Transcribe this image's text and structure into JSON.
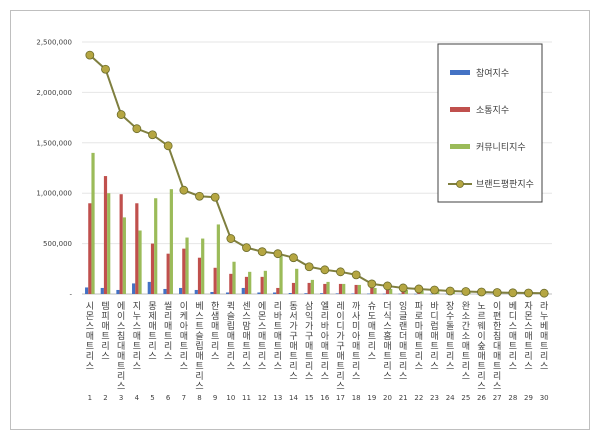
{
  "chart_data": {
    "type": "bar",
    "title": "",
    "xlabel": "",
    "ylabel": "",
    "ylim": [
      0,
      2500000
    ],
    "yticks": [
      "-",
      "500,000",
      "1,000,000",
      "1,500,000",
      "2,000,000",
      "2,500,000"
    ],
    "grid": true,
    "legend_position": "right",
    "categories": [
      "시몬스매트리스",
      "템피매트리스",
      "에이스침대매트리스",
      "지누스매트리스",
      "몽제매트리스",
      "씰리매트리스",
      "이케아매트리스",
      "베스트슬립매트리스",
      "한샘매트리스",
      "퀵슬립매트리스",
      "센스맘매트리스",
      "에몬스매트리스",
      "리바트매트리스",
      "동서가구매트리스",
      "삼익가구매트리스",
      "엘리바아매트리스",
      "레이디가구매트리스",
      "까사미아매트리스",
      "슈도매트리스",
      "더식스홈매트리스",
      "잉글랜더매트리스",
      "파로마매트리스",
      "바디럽매트리스",
      "장수돌매트리스",
      "완소간소매트리스",
      "노르웨이숲매트리스",
      "이편한침대매트리스",
      "베디스매트리스",
      "자몬스매트리스",
      "라누베매트리스"
    ],
    "index_labels": [
      "1",
      "2",
      "3",
      "4",
      "5",
      "6",
      "7",
      "8",
      "9",
      "10",
      "11",
      "12",
      "13",
      "14",
      "15",
      "16",
      "17",
      "18",
      "19",
      "20",
      "21",
      "22",
      "23",
      "24",
      "25",
      "26",
      "27",
      "28",
      "29",
      "30"
    ],
    "series": [
      {
        "name": "참여지수",
        "type": "bar",
        "color": "#4472c4",
        "values": [
          65000,
          60000,
          40000,
          105000,
          120000,
          50000,
          60000,
          40000,
          20000,
          15000,
          60000,
          15000,
          15000,
          10000,
          8000,
          8000,
          6000,
          5000,
          4000,
          3000,
          3000,
          2000,
          2000,
          1500,
          1500,
          1000,
          1000,
          800,
          600,
          500
        ]
      },
      {
        "name": "소통지수",
        "type": "bar",
        "color": "#c0504d",
        "values": [
          900000,
          1170000,
          990000,
          900000,
          500000,
          400000,
          450000,
          360000,
          260000,
          200000,
          170000,
          170000,
          60000,
          110000,
          110000,
          100000,
          100000,
          90000,
          60000,
          40000,
          30000,
          25000,
          20000,
          15000,
          12000,
          10000,
          8000,
          6000,
          5000,
          4000
        ]
      },
      {
        "name": "커뮤니티지수",
        "type": "bar",
        "color": "#9bbb59",
        "values": [
          1400000,
          1000000,
          760000,
          630000,
          950000,
          1040000,
          560000,
          550000,
          690000,
          320000,
          220000,
          230000,
          380000,
          250000,
          140000,
          120000,
          100000,
          90000,
          60000,
          50000,
          40000,
          35000,
          30000,
          25000,
          20000,
          15000,
          12000,
          10000,
          8000,
          6000
        ]
      },
      {
        "name": "브랜드평판지수",
        "type": "line",
        "color": "#7f7f3f",
        "marker_color": "#b5a642",
        "values": [
          2370000,
          2230000,
          1780000,
          1640000,
          1580000,
          1470000,
          1030000,
          970000,
          960000,
          550000,
          460000,
          420000,
          400000,
          360000,
          270000,
          240000,
          220000,
          190000,
          100000,
          80000,
          60000,
          50000,
          40000,
          30000,
          25000,
          20000,
          15000,
          12000,
          10000,
          8000
        ]
      }
    ]
  }
}
